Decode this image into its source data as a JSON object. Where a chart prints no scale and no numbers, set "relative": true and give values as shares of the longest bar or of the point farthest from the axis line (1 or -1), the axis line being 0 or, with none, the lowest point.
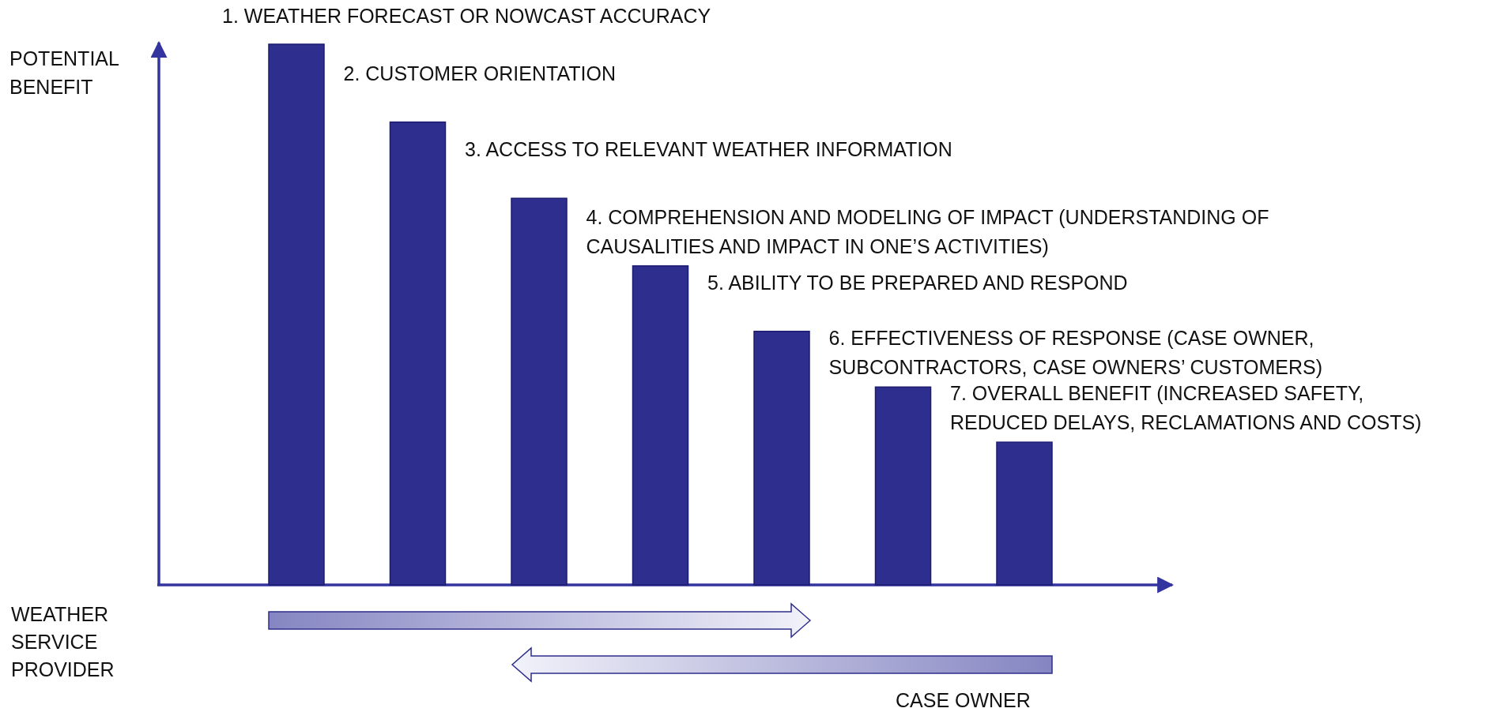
{
  "chart_data": {
    "type": "bar",
    "relative": true,
    "ylabel": "POTENTIAL\nBENEFIT",
    "categories": [
      null,
      null,
      null,
      null,
      null,
      null,
      null
    ],
    "values": [
      1,
      0.856,
      0.715,
      0.59,
      0.469,
      0.366,
      0.264
    ],
    "color": "#2e2e8f",
    "grid": false,
    "annotations": [
      "1. WEATHER FORECAST OR NOWCAST ACCURACY",
      "2. CUSTOMER ORIENTATION",
      "3. ACCESS TO RELEVANT WEATHER INFORMATION",
      "4. COMPREHENSION AND MODELING OF IMPACT (UNDERSTANDING OF\nCAUSALITIES AND IMPACT IN ONE’S ACTIVITIES)",
      "5. ABILITY TO BE PREPARED AND RESPOND",
      "6. EFFECTIVENESS OF RESPONSE (CASE OWNER,\nSUBCONTRACTORS, CASE OWNERS’ CUSTOMERS)",
      "7. OVERALL BENEFIT (INCREASED SAFETY,\nREDUCED DELAYS, RECLAMATIONS AND COSTS)",
      "WEATHER\nSERVICE\nPROVIDER",
      "CASE OWNER"
    ]
  }
}
